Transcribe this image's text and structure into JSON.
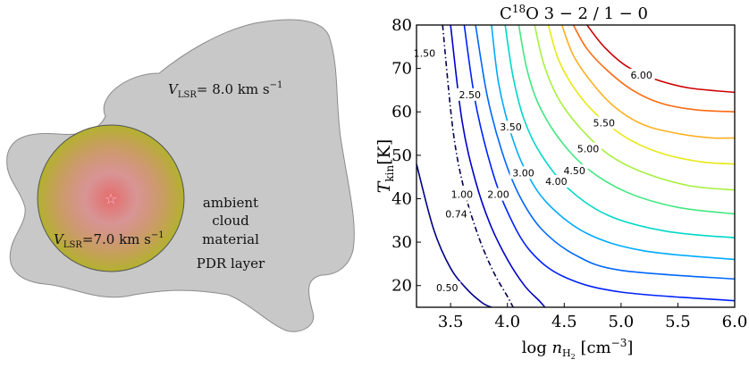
{
  "left_panel": {
    "outer_velocity": {
      "symbol": "V",
      "sub": "LSR",
      "text": "= 8.0 km s",
      "sup": "−1"
    },
    "inner_velocity": {
      "symbol": "V",
      "sub": "LSR",
      "text": "=7.0 km s",
      "sup": "−1"
    },
    "ambient_label_lines": [
      "ambient",
      "cloud",
      "material"
    ],
    "pdr_label": "PDR layer",
    "colors": {
      "cloud_fill": "#c8c8c8",
      "cloud_stroke": "#8c8c8c",
      "core_outer": "#b2b22e",
      "core_inner": "#e56b6b",
      "star": "#f2c4d6"
    },
    "icons": {
      "source": "star-icon"
    }
  },
  "chart_data": {
    "type": "contour",
    "title": {
      "main": "C",
      "sup": "18",
      "rest": "O 3 − 2 / 1 − 0"
    },
    "xlabel": {
      "prefix": "log ",
      "var": "n",
      "sub": "H",
      "subsub": "2",
      "units": " [cm",
      "units_sup": "−3",
      "units_end": "]"
    },
    "ylabel": {
      "var": "T",
      "sub": "kin",
      "units": "[K]"
    },
    "xlim": [
      3.2,
      6.0
    ],
    "ylim": [
      15,
      80
    ],
    "xticks": [
      "3.5",
      "4.0",
      "4.5",
      "5.0",
      "5.5",
      "6.0"
    ],
    "yticks": [
      "20",
      "30",
      "40",
      "50",
      "60",
      "70",
      "80"
    ],
    "contours": [
      {
        "level": 0.5,
        "label": "0.50",
        "color": "#000088",
        "style": "solid",
        "points": [
          [
            3.2,
            48
          ],
          [
            3.35,
            33
          ],
          [
            3.5,
            24
          ],
          [
            3.65,
            19
          ],
          [
            3.78,
            16
          ],
          [
            3.86,
            15
          ]
        ],
        "label_pos": [
          3.47,
          19.5
        ]
      },
      {
        "level": 0.74,
        "label": "0.74",
        "color": "#000050",
        "style": "dashdot",
        "points": [
          [
            3.43,
            80
          ],
          [
            3.52,
            56
          ],
          [
            3.62,
            42
          ],
          [
            3.75,
            31
          ],
          [
            3.88,
            23
          ],
          [
            4.0,
            17.5
          ],
          [
            4.05,
            15
          ]
        ],
        "label_pos": [
          3.55,
          36.5
        ]
      },
      {
        "level": 1.0,
        "label": "1.00",
        "color": "#0000cc",
        "style": "solid",
        "points": [
          [
            3.5,
            80
          ],
          [
            3.6,
            58
          ],
          [
            3.72,
            44
          ],
          [
            3.85,
            34
          ],
          [
            4.0,
            26
          ],
          [
            4.15,
            20
          ],
          [
            4.28,
            16.5
          ],
          [
            4.33,
            15
          ]
        ],
        "label_pos": [
          3.6,
          41
        ]
      },
      {
        "level": 1.5,
        "label": "1.50",
        "color": "#0022ff",
        "style": "solid",
        "points": [
          [
            3.62,
            80
          ],
          [
            3.72,
            62
          ],
          [
            3.86,
            47
          ],
          [
            4.0,
            37
          ],
          [
            4.2,
            28
          ],
          [
            4.5,
            22
          ],
          [
            5.0,
            18.5
          ],
          [
            6.0,
            16.5
          ]
        ],
        "label_pos": [
          3.27,
          73.5
        ]
      },
      {
        "level": 2.0,
        "label": "2.00",
        "color": "#0066ff",
        "style": "solid",
        "points": [
          [
            3.72,
            80
          ],
          [
            3.82,
            64
          ],
          [
            3.95,
            51
          ],
          [
            4.1,
            41
          ],
          [
            4.3,
            33
          ],
          [
            4.6,
            27
          ],
          [
            5.0,
            23.5
          ],
          [
            6.0,
            21.5
          ]
        ],
        "label_pos": [
          3.92,
          41
        ]
      },
      {
        "level": 2.5,
        "label": "2.50",
        "color": "#00aaff",
        "style": "solid",
        "points": [
          [
            3.86,
            80
          ],
          [
            3.92,
            67
          ],
          [
            4.02,
            56
          ],
          [
            4.15,
            47
          ],
          [
            4.35,
            39
          ],
          [
            4.7,
            32
          ],
          [
            5.2,
            28
          ],
          [
            6.0,
            26
          ]
        ],
        "label_pos": [
          3.67,
          64
        ]
      },
      {
        "level": 3.0,
        "label": "3.00",
        "color": "#00d8c8",
        "style": "solid",
        "points": [
          [
            3.98,
            80
          ],
          [
            4.05,
            68
          ],
          [
            4.15,
            58
          ],
          [
            4.3,
            50
          ],
          [
            4.55,
            42
          ],
          [
            4.9,
            36
          ],
          [
            5.4,
            32.5
          ],
          [
            6.0,
            31
          ]
        ],
        "label_pos": [
          4.14,
          46
        ]
      },
      {
        "level": 3.5,
        "label": "3.50",
        "color": "#40e880",
        "style": "solid",
        "points": [
          [
            4.1,
            80
          ],
          [
            4.17,
            70
          ],
          [
            4.27,
            62
          ],
          [
            4.45,
            54
          ],
          [
            4.7,
            47
          ],
          [
            5.05,
            41.5
          ],
          [
            5.5,
            38
          ],
          [
            6.0,
            36.5
          ]
        ],
        "label_pos": [
          4.03,
          56.5
        ]
      },
      {
        "level": 4.0,
        "label": "4.00",
        "color": "#a8f040",
        "style": "solid",
        "points": [
          [
            4.24,
            80
          ],
          [
            4.32,
            71
          ],
          [
            4.45,
            63
          ],
          [
            4.65,
            56
          ],
          [
            4.9,
            50
          ],
          [
            5.2,
            46
          ],
          [
            5.6,
            43
          ],
          [
            6.0,
            42
          ]
        ],
        "label_pos": [
          4.43,
          44
        ]
      },
      {
        "level": 4.5,
        "label": "4.50",
        "color": "#e8e818",
        "style": "solid",
        "points": [
          [
            4.36,
            80
          ],
          [
            4.45,
            72
          ],
          [
            4.6,
            65
          ],
          [
            4.8,
            59
          ],
          [
            5.05,
            54
          ],
          [
            5.35,
            50.5
          ],
          [
            5.7,
            48.5
          ],
          [
            6.0,
            48
          ]
        ],
        "label_pos": [
          4.59,
          46.5
        ]
      },
      {
        "level": 5.0,
        "label": "5.00",
        "color": "#ffb020",
        "style": "solid",
        "points": [
          [
            4.48,
            80
          ],
          [
            4.58,
            73
          ],
          [
            4.75,
            66.5
          ],
          [
            4.95,
            61
          ],
          [
            5.2,
            57
          ],
          [
            5.5,
            55
          ],
          [
            5.8,
            54
          ],
          [
            6.0,
            54
          ]
        ],
        "label_pos": [
          4.71,
          51.5
        ]
      },
      {
        "level": 5.5,
        "label": "5.50",
        "color": "#ff6a10",
        "style": "solid",
        "points": [
          [
            4.58,
            80
          ],
          [
            4.7,
            74.5
          ],
          [
            4.88,
            69.5
          ],
          [
            5.1,
            65
          ],
          [
            5.35,
            62
          ],
          [
            5.65,
            60.5
          ],
          [
            6.0,
            60
          ]
        ],
        "label_pos": [
          4.85,
          57.5
        ]
      },
      {
        "level": 6.0,
        "label": "6.00",
        "color": "#cc0000",
        "style": "solid",
        "points": [
          [
            4.7,
            80
          ],
          [
            4.85,
            75
          ],
          [
            5.05,
            70.5
          ],
          [
            5.3,
            67.5
          ],
          [
            5.6,
            65.5
          ],
          [
            6.0,
            64.5
          ]
        ],
        "label_pos": [
          5.18,
          68.5
        ]
      }
    ]
  }
}
